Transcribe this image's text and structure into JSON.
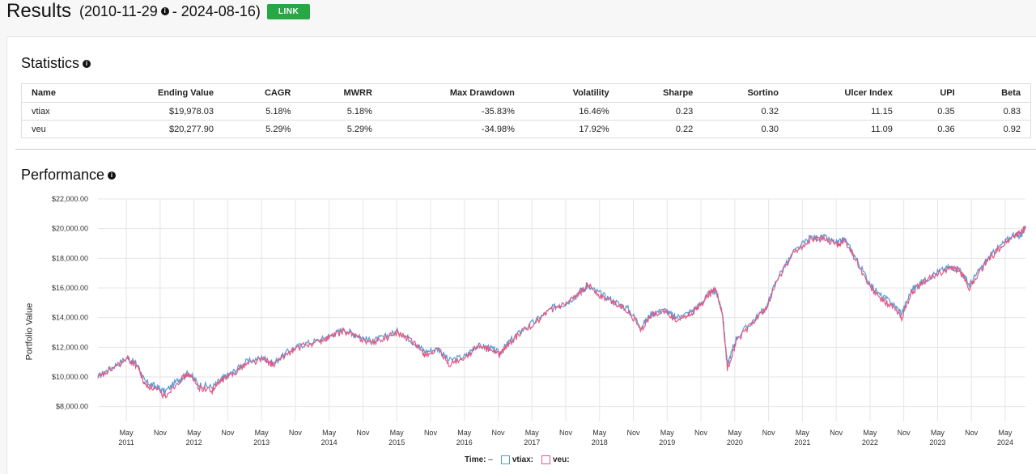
{
  "header": {
    "title": "Results",
    "date_start": "(2010-11-29",
    "date_end": "- 2024-08-16)",
    "link_label": "LINK"
  },
  "statistics": {
    "title": "Statistics",
    "columns": [
      "Name",
      "Ending Value",
      "CAGR",
      "MWRR",
      "Max Drawdown",
      "Volatility",
      "Sharpe",
      "Sortino",
      "Ulcer Index",
      "UPI",
      "Beta"
    ],
    "rows": [
      [
        "vtiax",
        "$19,978.03",
        "5.18%",
        "5.18%",
        "-35.83%",
        "16.46%",
        "0.23",
        "0.32",
        "11.15",
        "0.35",
        "0.83"
      ],
      [
        "veu",
        "$20,277.90",
        "5.29%",
        "5.29%",
        "-34.98%",
        "17.92%",
        "0.22",
        "0.30",
        "11.09",
        "0.36",
        "0.92"
      ]
    ]
  },
  "performance": {
    "title": "Performance",
    "legend_time": "Time:",
    "legend_time_value": "–",
    "legend_series": [
      "vtiax:",
      "veu:"
    ]
  },
  "chart_data": {
    "type": "line",
    "ylabel": "Portfolio Value",
    "ylim": [
      7000,
      22000
    ],
    "yticks": [
      "$8,000.00",
      "$10,000.00",
      "$12,000.00",
      "$14,000.00",
      "$16,000.00",
      "$18,000.00",
      "$20,000.00",
      "$22,000.00"
    ],
    "ytick_values": [
      8000,
      10000,
      12000,
      14000,
      16000,
      18000,
      20000,
      22000
    ],
    "xticks": [
      {
        "m": "May",
        "y": "2011",
        "t": 2011.33
      },
      {
        "m": "Nov",
        "y": "",
        "t": 2011.83
      },
      {
        "m": "May",
        "y": "2012",
        "t": 2012.33
      },
      {
        "m": "Nov",
        "y": "",
        "t": 2012.83
      },
      {
        "m": "May",
        "y": "2013",
        "t": 2013.33
      },
      {
        "m": "Nov",
        "y": "",
        "t": 2013.83
      },
      {
        "m": "May",
        "y": "2014",
        "t": 2014.33
      },
      {
        "m": "Nov",
        "y": "",
        "t": 2014.83
      },
      {
        "m": "May",
        "y": "2015",
        "t": 2015.33
      },
      {
        "m": "Nov",
        "y": "",
        "t": 2015.83
      },
      {
        "m": "May",
        "y": "2016",
        "t": 2016.33
      },
      {
        "m": "Nov",
        "y": "",
        "t": 2016.83
      },
      {
        "m": "May",
        "y": "2017",
        "t": 2017.33
      },
      {
        "m": "Nov",
        "y": "",
        "t": 2017.83
      },
      {
        "m": "May",
        "y": "2018",
        "t": 2018.33
      },
      {
        "m": "Nov",
        "y": "",
        "t": 2018.83
      },
      {
        "m": "May",
        "y": "2019",
        "t": 2019.33
      },
      {
        "m": "Nov",
        "y": "",
        "t": 2019.83
      },
      {
        "m": "May",
        "y": "2020",
        "t": 2020.33
      },
      {
        "m": "Nov",
        "y": "",
        "t": 2020.83
      },
      {
        "m": "May",
        "y": "2021",
        "t": 2021.33
      },
      {
        "m": "Nov",
        "y": "",
        "t": 2021.83
      },
      {
        "m": "May",
        "y": "2022",
        "t": 2022.33
      },
      {
        "m": "Nov",
        "y": "",
        "t": 2022.83
      },
      {
        "m": "May",
        "y": "2023",
        "t": 2023.33
      },
      {
        "m": "Nov",
        "y": "",
        "t": 2023.83
      },
      {
        "m": "May",
        "y": "2024",
        "t": 2024.33
      }
    ],
    "xlim": [
      2010.91,
      2024.63
    ],
    "grid": true,
    "series": [
      {
        "name": "vtiax",
        "color": "#5b9bd5",
        "x": [
          2010.91,
          2011.1,
          2011.35,
          2011.5,
          2011.6,
          2011.75,
          2011.9,
          2012.1,
          2012.25,
          2012.4,
          2012.6,
          2012.75,
          2012.9,
          2013.1,
          2013.35,
          2013.5,
          2013.75,
          2013.95,
          2014.2,
          2014.35,
          2014.55,
          2014.75,
          2014.95,
          2015.15,
          2015.35,
          2015.6,
          2015.75,
          2015.95,
          2016.1,
          2016.35,
          2016.5,
          2016.7,
          2016.85,
          2017.0,
          2017.2,
          2017.45,
          2017.65,
          2017.85,
          2018.05,
          2018.15,
          2018.35,
          2018.55,
          2018.75,
          2018.95,
          2019.1,
          2019.3,
          2019.45,
          2019.65,
          2019.8,
          2019.95,
          2020.05,
          2020.15,
          2020.22,
          2020.35,
          2020.6,
          2020.8,
          2020.95,
          2021.2,
          2021.45,
          2021.65,
          2021.85,
          2021.95,
          2022.1,
          2022.3,
          2022.45,
          2022.65,
          2022.8,
          2022.95,
          2023.1,
          2023.3,
          2023.5,
          2023.65,
          2023.8,
          2023.95,
          2024.1,
          2024.25,
          2024.45,
          2024.55,
          2024.63
        ],
        "values": [
          10000,
          10600,
          11300,
          10800,
          9700,
          9400,
          9000,
          9800,
          10300,
          9500,
          9300,
          9900,
          10300,
          11000,
          11300,
          10900,
          11800,
          12200,
          12500,
          12800,
          13200,
          12800,
          12400,
          12700,
          13100,
          12300,
          11700,
          11900,
          11100,
          11400,
          12100,
          12000,
          11600,
          12400,
          13200,
          14000,
          14700,
          15000,
          15800,
          16100,
          15600,
          15100,
          14600,
          13400,
          14300,
          14500,
          14000,
          14300,
          14800,
          15600,
          15800,
          14300,
          10800,
          12600,
          13800,
          14700,
          16600,
          18400,
          19400,
          19400,
          19000,
          19300,
          18200,
          16500,
          15600,
          15000,
          14300,
          15900,
          16400,
          17000,
          17400,
          17300,
          16200,
          17200,
          18100,
          18800,
          19600,
          19500,
          20000
        ]
      },
      {
        "name": "veu",
        "color": "#e05a84",
        "x": [
          2010.91,
          2011.1,
          2011.35,
          2011.5,
          2011.6,
          2011.75,
          2011.9,
          2012.1,
          2012.25,
          2012.4,
          2012.6,
          2012.75,
          2012.9,
          2013.1,
          2013.35,
          2013.5,
          2013.75,
          2013.95,
          2014.2,
          2014.35,
          2014.55,
          2014.75,
          2014.95,
          2015.15,
          2015.35,
          2015.6,
          2015.75,
          2015.95,
          2016.1,
          2016.35,
          2016.5,
          2016.7,
          2016.85,
          2017.0,
          2017.2,
          2017.45,
          2017.65,
          2017.85,
          2018.05,
          2018.15,
          2018.35,
          2018.55,
          2018.75,
          2018.95,
          2019.1,
          2019.3,
          2019.45,
          2019.65,
          2019.8,
          2019.95,
          2020.05,
          2020.15,
          2020.22,
          2020.35,
          2020.6,
          2020.8,
          2020.95,
          2021.2,
          2021.45,
          2021.65,
          2021.85,
          2021.95,
          2022.1,
          2022.3,
          2022.45,
          2022.65,
          2022.8,
          2022.95,
          2023.1,
          2023.3,
          2023.5,
          2023.65,
          2023.8,
          2023.95,
          2024.1,
          2024.25,
          2024.45,
          2024.55,
          2024.63
        ],
        "values": [
          9900,
          10500,
          11200,
          10700,
          9500,
          9200,
          8700,
          9700,
          10200,
          9300,
          9100,
          9800,
          10200,
          10900,
          11200,
          10800,
          11700,
          12100,
          12400,
          12700,
          13100,
          12700,
          12300,
          12600,
          13000,
          12200,
          11500,
          11800,
          10800,
          11300,
          12000,
          11900,
          11500,
          12300,
          13100,
          13900,
          14600,
          14900,
          15700,
          16300,
          15400,
          15000,
          14500,
          13200,
          14200,
          14400,
          13900,
          14200,
          14700,
          15600,
          15900,
          14100,
          10500,
          12400,
          13700,
          14600,
          16500,
          18300,
          19300,
          19300,
          18900,
          19200,
          18100,
          16300,
          15400,
          14800,
          14000,
          15700,
          16300,
          16900,
          17300,
          17200,
          16000,
          17100,
          18000,
          18700,
          19500,
          19700,
          20200
        ]
      }
    ]
  }
}
